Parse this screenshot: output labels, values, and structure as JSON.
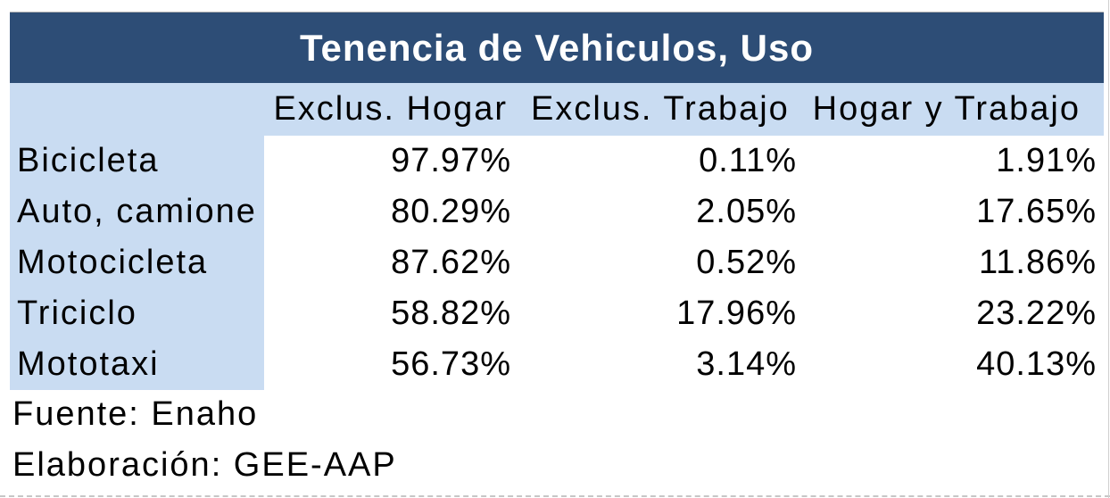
{
  "table": {
    "title": "Tenencia de Vehiculos, Uso",
    "columns": [
      "Exclus. Hogar",
      "Exclus. Trabajo",
      "Hogar y Trabajo"
    ],
    "rows": [
      {
        "label": "Bicicleta",
        "values": [
          "97.97%",
          "0.11%",
          "1.91%"
        ]
      },
      {
        "label": "Auto, camione",
        "values": [
          "80.29%",
          "2.05%",
          "17.65%"
        ]
      },
      {
        "label": "Motocicleta",
        "values": [
          "87.62%",
          "0.52%",
          "11.86%"
        ]
      },
      {
        "label": "Triciclo",
        "values": [
          "58.82%",
          "17.96%",
          "23.22%"
        ]
      },
      {
        "label": "Mototaxi",
        "values": [
          "56.73%",
          "3.14%",
          "40.13%"
        ]
      }
    ]
  },
  "footer": {
    "source": "Fuente: Enaho",
    "elaboration": "Elaboración: GEE-AAP"
  },
  "colors": {
    "title_bg": "#2D4D76",
    "title_text": "#FFFFFF",
    "header_bg": "#C9DCF2",
    "body_text": "#000000"
  },
  "chart_data": {
    "type": "table",
    "title": "Tenencia de Vehiculos, Uso",
    "columns": [
      "Exclus. Hogar",
      "Exclus. Trabajo",
      "Hogar y Trabajo"
    ],
    "categories": [
      "Bicicleta",
      "Auto, camione",
      "Motocicleta",
      "Triciclo",
      "Mototaxi"
    ],
    "series": [
      {
        "name": "Exclus. Hogar",
        "values": [
          97.97,
          80.29,
          87.62,
          58.82,
          56.73
        ]
      },
      {
        "name": "Exclus. Trabajo",
        "values": [
          0.11,
          2.05,
          0.52,
          17.96,
          3.14
        ]
      },
      {
        "name": "Hogar y Trabajo",
        "values": [
          1.91,
          17.65,
          11.86,
          23.22,
          40.13
        ]
      }
    ],
    "unit": "%",
    "source": "Fuente: Enaho",
    "elaboration": "Elaboración: GEE-AAP"
  }
}
